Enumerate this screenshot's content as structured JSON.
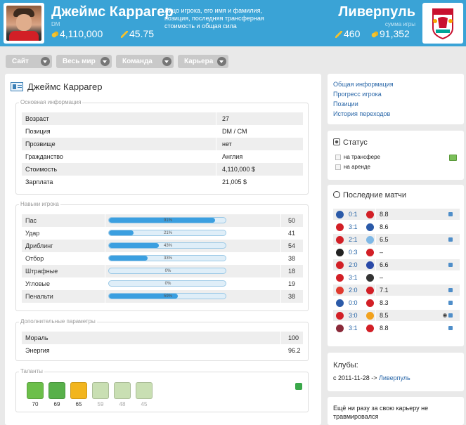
{
  "header": {
    "player_name": "Джеймс Каррагер",
    "position_small": "DM",
    "player_value": "4,110,000",
    "player_rating": "45.75",
    "description": "Лицо игрока, его имя и фамилия, позиция, последняя трансферная стоимость и общая сила",
    "club_name": "Ливерпуль",
    "club_small": "сумма игры",
    "club_rating": "460",
    "club_value": "91,352"
  },
  "menu": [
    {
      "label": "Сайт"
    },
    {
      "label": "Весь мир"
    },
    {
      "label": "Команда"
    },
    {
      "label": "Карьера"
    }
  ],
  "main": {
    "title": "Джеймс Каррагер",
    "basic": {
      "legend": "Основная информация",
      "rows": [
        {
          "k": "Возраст",
          "v": "27"
        },
        {
          "k": "Позиция",
          "v": "DM / CM"
        },
        {
          "k": "Прозвище",
          "v": "нет"
        },
        {
          "k": "Гражданство",
          "v": "Англия"
        },
        {
          "k": "Стоимость",
          "v": "4,110,000 $"
        },
        {
          "k": "Зарплата",
          "v": "21,005 $"
        }
      ]
    },
    "skills": {
      "legend": "Навыки игрока",
      "rows": [
        {
          "k": "Пас",
          "pct": 91,
          "pct_label": "91%",
          "v": "50"
        },
        {
          "k": "Удар",
          "pct": 21,
          "pct_label": "21%",
          "v": "41"
        },
        {
          "k": "Дриблинг",
          "pct": 43,
          "pct_label": "43%",
          "v": "54"
        },
        {
          "k": "Отбор",
          "pct": 33,
          "pct_label": "33%",
          "v": "38"
        },
        {
          "k": "Штрафные",
          "pct": 0,
          "pct_label": "0%",
          "v": "18"
        },
        {
          "k": "Угловые",
          "pct": 0,
          "pct_label": "0%",
          "v": "19"
        },
        {
          "k": "Пенальти",
          "pct": 59,
          "pct_label": "59%",
          "v": "38"
        }
      ]
    },
    "params": {
      "legend": "Дополнительные параметры",
      "rows": [
        {
          "k": "Мораль",
          "v": "100"
        },
        {
          "k": "Энергия",
          "v": "96.2"
        }
      ]
    },
    "talents": {
      "legend": "Таланты",
      "items": [
        {
          "icon": "pitch-icon",
          "value": "70",
          "active": true,
          "color": "#6cbf4a"
        },
        {
          "icon": "tactics-icon",
          "value": "69",
          "active": true,
          "color": "#58b04a"
        },
        {
          "icon": "boots-icon",
          "value": "65",
          "active": true,
          "color": "#f2b51e"
        },
        {
          "icon": "players-icon",
          "value": "59",
          "active": false,
          "color": "#c9dfb3"
        },
        {
          "icon": "whistle-icon",
          "value": "48",
          "active": false,
          "color": "#c9dfb3"
        },
        {
          "icon": "shirt-icon",
          "value": "45",
          "active": false,
          "color": "#c9dfb3"
        }
      ]
    }
  },
  "side": {
    "links": [
      "Общая информация",
      "Прогресс игрока",
      "Позиции",
      "История переходов"
    ],
    "status": {
      "title": "Статус",
      "options": [
        "на трансфере",
        "на аренде"
      ]
    },
    "matches": {
      "title": "Последние матчи",
      "rows": [
        {
          "home": "#2b5aa8",
          "score": "0:1",
          "away": "#d21f26",
          "rating": "8.8",
          "card": true
        },
        {
          "home": "#d21f26",
          "score": "3:1",
          "away": "#2b5aa8",
          "rating": "8.6",
          "card": false
        },
        {
          "home": "#d21f26",
          "score": "2:1",
          "away": "#7fb8e6",
          "rating": "6.5",
          "card": true
        },
        {
          "home": "#222222",
          "score": "0:3",
          "away": "#d21f26",
          "rating": "–",
          "card": false
        },
        {
          "home": "#d21f26",
          "score": "2:0",
          "away": "#2a4aa8",
          "rating": "6.6",
          "card": true
        },
        {
          "home": "#d21f26",
          "score": "3:1",
          "away": "#333333",
          "rating": "–",
          "card": false
        },
        {
          "home": "#e03a2e",
          "score": "2:0",
          "away": "#d21f26",
          "rating": "7.1",
          "card": true
        },
        {
          "home": "#2b5aa8",
          "score": "0:0",
          "away": "#d21f26",
          "rating": "8.3",
          "card": true
        },
        {
          "home": "#d21f26",
          "score": "3:0",
          "away": "#f2a21e",
          "rating": "8.5",
          "card": true,
          "ball": true
        },
        {
          "home": "#8a2a3a",
          "score": "3:1",
          "away": "#d21f26",
          "rating": "8.8",
          "card": true
        }
      ]
    },
    "clubs": {
      "title": "Клубы:",
      "entry_prefix": "с 2011-11-28 ->",
      "entry_club": "Ливерпуль"
    },
    "injury": {
      "text": "Ещё ни разу за свою карьеру не травмировался"
    }
  },
  "colors": {
    "header": "#3aa3d6",
    "bar_fill": "#3b9fe0",
    "link": "#2a67a8"
  }
}
